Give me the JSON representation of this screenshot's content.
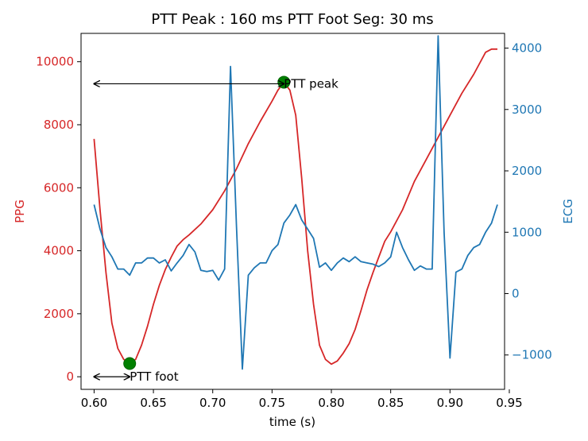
{
  "chart_data": {
    "type": "line",
    "title": "PTT Peak :  160 ms   PTT Foot Seg:   30 ms",
    "xlabel": "time (s)",
    "ylabel_left": "PPG",
    "ylabel_right": "ECG",
    "xlim": [
      0.589,
      0.946
    ],
    "ylim_left": [
      -400,
      10900
    ],
    "ylim_right": [
      -1560,
      4240
    ],
    "x_ticks": [
      0.6,
      0.65,
      0.7,
      0.75,
      0.8,
      0.85,
      0.9,
      0.95
    ],
    "x_tick_labels": [
      "0.60",
      "0.65",
      "0.70",
      "0.75",
      "0.80",
      "0.85",
      "0.90",
      "0.95"
    ],
    "y_left_ticks": [
      0,
      2000,
      4000,
      6000,
      8000,
      10000
    ],
    "y_left_tick_labels": [
      "0",
      "2000",
      "4000",
      "6000",
      "8000",
      "10000"
    ],
    "y_right_ticks": [
      -1000,
      0,
      1000,
      2000,
      3000,
      4000
    ],
    "y_right_tick_labels": [
      "−1000",
      "0",
      "1000",
      "2000",
      "3000",
      "4000"
    ],
    "colors": {
      "ppg": "#d62728",
      "ecg": "#1f77b4",
      "marker": "#008000",
      "marker_edge": "#006400"
    },
    "series": [
      {
        "name": "PPG",
        "axis": "left",
        "x": [
          0.6,
          0.605,
          0.61,
          0.615,
          0.62,
          0.625,
          0.63,
          0.635,
          0.64,
          0.645,
          0.65,
          0.655,
          0.66,
          0.665,
          0.67,
          0.675,
          0.68,
          0.69,
          0.7,
          0.71,
          0.72,
          0.73,
          0.74,
          0.75,
          0.755,
          0.76,
          0.765,
          0.77,
          0.775,
          0.78,
          0.785,
          0.79,
          0.795,
          0.8,
          0.805,
          0.81,
          0.815,
          0.82,
          0.825,
          0.83,
          0.835,
          0.84,
          0.845,
          0.85,
          0.86,
          0.87,
          0.88,
          0.89,
          0.9,
          0.91,
          0.92,
          0.93,
          0.935,
          0.94
        ],
        "y": [
          7550,
          5300,
          3300,
          1700,
          900,
          550,
          420,
          550,
          1000,
          1600,
          2300,
          2900,
          3400,
          3800,
          4150,
          4350,
          4500,
          4850,
          5300,
          5900,
          6600,
          7400,
          8100,
          8750,
          9100,
          9350,
          9100,
          8300,
          6300,
          4000,
          2300,
          1000,
          550,
          400,
          500,
          750,
          1050,
          1500,
          2100,
          2750,
          3300,
          3800,
          4300,
          4600,
          5300,
          6200,
          6900,
          7600,
          8300,
          9000,
          9600,
          10300,
          10400,
          10400
        ]
      },
      {
        "name": "ECG",
        "axis": "right",
        "x": [
          0.6,
          0.605,
          0.61,
          0.615,
          0.62,
          0.625,
          0.63,
          0.635,
          0.64,
          0.645,
          0.65,
          0.655,
          0.66,
          0.665,
          0.67,
          0.675,
          0.68,
          0.685,
          0.69,
          0.695,
          0.7,
          0.705,
          0.71,
          0.715,
          0.72,
          0.725,
          0.73,
          0.735,
          0.74,
          0.745,
          0.75,
          0.755,
          0.76,
          0.765,
          0.77,
          0.775,
          0.78,
          0.785,
          0.79,
          0.795,
          0.8,
          0.805,
          0.81,
          0.815,
          0.82,
          0.825,
          0.83,
          0.835,
          0.84,
          0.845,
          0.85,
          0.855,
          0.86,
          0.865,
          0.87,
          0.875,
          0.88,
          0.885,
          0.89,
          0.895,
          0.9,
          0.905,
          0.91,
          0.915,
          0.92,
          0.925,
          0.93,
          0.935,
          0.94
        ],
        "y": [
          1450,
          1050,
          750,
          600,
          400,
          400,
          300,
          500,
          500,
          580,
          580,
          500,
          550,
          370,
          500,
          620,
          800,
          680,
          380,
          360,
          380,
          220,
          400,
          3700,
          1100,
          -1230,
          300,
          420,
          500,
          500,
          700,
          800,
          1150,
          1280,
          1450,
          1200,
          1050,
          900,
          430,
          500,
          380,
          500,
          580,
          520,
          600,
          520,
          500,
          480,
          440,
          500,
          600,
          1000,
          750,
          550,
          380,
          450,
          400,
          400,
          4200,
          1000,
          -1050,
          350,
          400,
          620,
          750,
          800,
          1000,
          1150,
          1450
        ]
      }
    ],
    "markers": [
      {
        "name": "PTT peak point",
        "x": 0.76,
        "y": 9350
      },
      {
        "name": "PTT foot point",
        "x": 0.63,
        "y": 420
      }
    ],
    "annotations": [
      {
        "text": "PTT peak",
        "arrow_x": [
          0.6,
          0.76
        ],
        "arrow_y": 9300
      },
      {
        "text": "PTT foot",
        "arrow_x": [
          0.6,
          0.63
        ],
        "arrow_y": 0
      }
    ]
  }
}
